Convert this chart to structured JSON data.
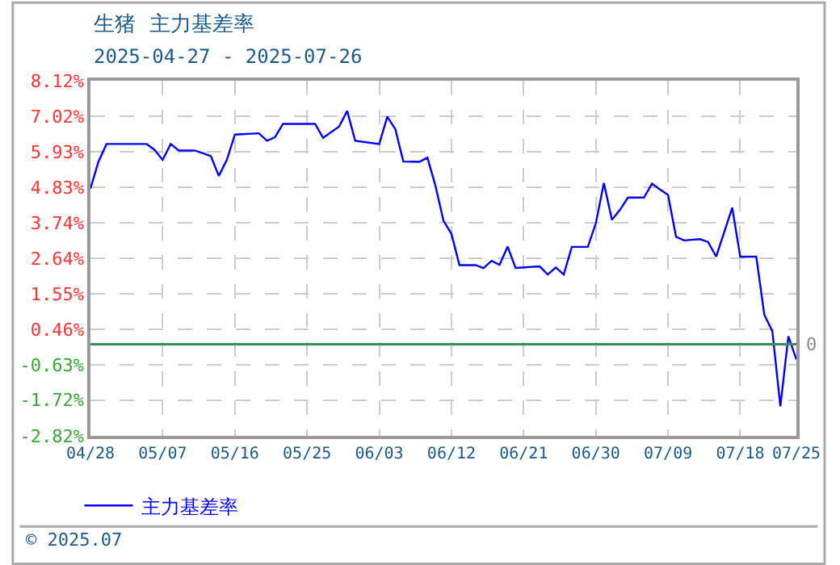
{
  "chart_data": {
    "type": "line",
    "title": "生猪  主力基差率",
    "subtitle": "2025-04-27 - 2025-07-26",
    "x": [
      "2025-04-28",
      "2025-04-29",
      "2025-04-30",
      "2025-05-05",
      "2025-05-06",
      "2025-05-07",
      "2025-05-08",
      "2025-05-09",
      "2025-05-11",
      "2025-05-13",
      "2025-05-14",
      "2025-05-15",
      "2025-05-16",
      "2025-05-19",
      "2025-05-20",
      "2025-05-21",
      "2025-05-22",
      "2025-05-26",
      "2025-05-27",
      "2025-05-29",
      "2025-05-30",
      "2025-05-31",
      "2025-06-03",
      "2025-06-04",
      "2025-06-05",
      "2025-06-06",
      "2025-06-08",
      "2025-06-09",
      "2025-06-10",
      "2025-06-11",
      "2025-06-12",
      "2025-06-13",
      "2025-06-15",
      "2025-06-16",
      "2025-06-17",
      "2025-06-18",
      "2025-06-19",
      "2025-06-20",
      "2025-06-23",
      "2025-06-24",
      "2025-06-25",
      "2025-06-26",
      "2025-06-27",
      "2025-06-29",
      "2025-06-30",
      "2025-07-01",
      "2025-07-02",
      "2025-07-03",
      "2025-07-04",
      "2025-07-06",
      "2025-07-07",
      "2025-07-08",
      "2025-07-09",
      "2025-07-10",
      "2025-07-11",
      "2025-07-13",
      "2025-07-14",
      "2025-07-15",
      "2025-07-17",
      "2025-07-18",
      "2025-07-20",
      "2025-07-21",
      "2025-07-22",
      "2025-07-23",
      "2025-07-24",
      "2025-07-25"
    ],
    "series": [
      {
        "name": "主力基差率",
        "color": "#0000ff",
        "values": [
          4.8,
          5.63,
          6.17,
          6.17,
          5.99,
          5.68,
          6.17,
          5.97,
          5.97,
          5.8,
          5.19,
          5.68,
          6.46,
          6.5,
          6.27,
          6.38,
          6.79,
          6.79,
          6.36,
          6.71,
          7.19,
          6.27,
          6.17,
          7.01,
          6.63,
          5.63,
          5.62,
          5.75,
          4.89,
          3.81,
          3.4,
          2.44,
          2.44,
          2.35,
          2.57,
          2.45,
          3.01,
          2.35,
          2.4,
          2.15,
          2.37,
          2.15,
          3.0,
          3.0,
          3.73,
          4.97,
          3.84,
          4.14,
          4.52,
          4.52,
          4.95,
          4.77,
          4.6,
          3.31,
          3.2,
          3.24,
          3.15,
          2.7,
          4.21,
          2.7,
          2.7,
          0.91,
          0.41,
          -1.91,
          0.25,
          -0.47
        ]
      }
    ],
    "xlim": [
      "2025-04-28",
      "2025-07-25"
    ],
    "xticks": [
      {
        "value": "2025-04-28",
        "label": "04/28"
      },
      {
        "value": "2025-05-07",
        "label": "05/07"
      },
      {
        "value": "2025-05-16",
        "label": "05/16"
      },
      {
        "value": "2025-05-25",
        "label": "05/25"
      },
      {
        "value": "2025-06-03",
        "label": "06/03"
      },
      {
        "value": "2025-06-12",
        "label": "06/12"
      },
      {
        "value": "2025-06-21",
        "label": "06/21"
      },
      {
        "value": "2025-06-30",
        "label": "06/30"
      },
      {
        "value": "2025-07-09",
        "label": "07/09"
      },
      {
        "value": "2025-07-18",
        "label": "07/18"
      },
      {
        "value": "2025-07-25",
        "label": "07/25"
      }
    ],
    "ylim": [
      -2.82,
      8.12
    ],
    "yticks": [
      {
        "value": -2.82,
        "label": "-2.82%"
      },
      {
        "value": -1.72,
        "label": "-1.72%"
      },
      {
        "value": -0.63,
        "label": "-0.63%"
      },
      {
        "value": 0.46,
        "label": "0.46%"
      },
      {
        "value": 1.55,
        "label": "1.55%"
      },
      {
        "value": 2.64,
        "label": "2.64%"
      },
      {
        "value": 3.74,
        "label": "3.74%"
      },
      {
        "value": 4.83,
        "label": "4.83%"
      },
      {
        "value": 5.93,
        "label": "5.93%"
      },
      {
        "value": 7.02,
        "label": "7.02%"
      },
      {
        "value": 8.12,
        "label": "8.12%"
      }
    ],
    "ref_lines": [
      {
        "axis": "y",
        "value": 0,
        "label": "0",
        "color": "#3a8a5a"
      }
    ],
    "grid": true,
    "legend": "bottom left",
    "marker": "none",
    "line_style": "solid",
    "annotations": [
      "© 2025.07"
    ]
  }
}
